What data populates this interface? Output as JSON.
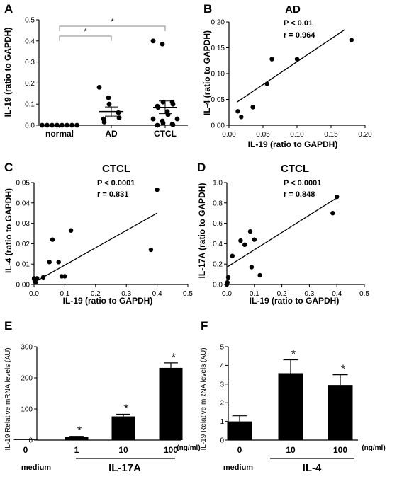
{
  "chart_data": [
    {
      "panel": "A",
      "type": "scatter",
      "ylabel": "IL-19 (ratio to GAPDH)",
      "yticks": [
        "0.0",
        "0.1",
        "0.2",
        "0.3",
        "0.4",
        "0.5"
      ],
      "ylim": [
        0,
        0.5
      ],
      "categories": [
        "normal",
        "AD",
        "CTCL"
      ],
      "groups": [
        {
          "name": "normal",
          "values": [
            0,
            0,
            0,
            0,
            0,
            0,
            0,
            0
          ],
          "mean": 0,
          "sem": 0
        },
        {
          "name": "AD",
          "values": [
            0.18,
            0.13,
            0.1,
            0.06,
            0.035,
            0.03,
            0.015
          ],
          "mean": 0.065,
          "sem": 0.022
        },
        {
          "name": "CTCL",
          "values": [
            0.4,
            0.385,
            0.11,
            0.11,
            0.1,
            0.09,
            0.085,
            0.065,
            0.05,
            0.03,
            0.03,
            0.02,
            0.01,
            0.005,
            0.002,
            0.0
          ],
          "mean": 0.085,
          "sem": 0.03
        }
      ],
      "brackets": [
        {
          "from": "normal",
          "to": "AD",
          "label": "*"
        },
        {
          "from": "normal",
          "to": "CTCL",
          "label": "*"
        }
      ]
    },
    {
      "panel": "B",
      "type": "scatter",
      "title": "AD",
      "p_text": "P < 0.01",
      "r_text": "r = 0.964",
      "xlabel": "IL-19 (ratio to GAPDH)",
      "ylabel": "IL-4 (ratio to GAPDH)",
      "xticks": [
        "0.00",
        "0.05",
        "0.10",
        "0.15",
        "0.20"
      ],
      "yticks": [
        "0.00",
        "0.05",
        "0.10",
        "0.15",
        "0.20"
      ],
      "xlim": [
        0,
        0.2
      ],
      "ylim": [
        0,
        0.2
      ],
      "points": [
        [
          0.013,
          0.027
        ],
        [
          0.018,
          0.016
        ],
        [
          0.035,
          0.035
        ],
        [
          0.056,
          0.08
        ],
        [
          0.063,
          0.128
        ],
        [
          0.1,
          0.128
        ],
        [
          0.18,
          0.165
        ]
      ],
      "fit": [
        [
          0.012,
          0.045
        ],
        [
          0.17,
          0.185
        ]
      ]
    },
    {
      "panel": "C",
      "type": "scatter",
      "title": "CTCL",
      "p_text": "P < 0.0001",
      "r_text": "r = 0.831",
      "xlabel": "IL-19 (ratio to GAPDH)",
      "ylabel": "IL-4 (ratio to GAPDH)",
      "xticks": [
        "0.0",
        "0.1",
        "0.2",
        "0.3",
        "0.4",
        "0.5"
      ],
      "yticks": [
        "0.00",
        "0.01",
        "0.02",
        "0.03",
        "0.04",
        "0.05"
      ],
      "xlim": [
        0,
        0.5
      ],
      "ylim": [
        0,
        0.05
      ],
      "points": [
        [
          0.0,
          0.003
        ],
        [
          0.002,
          0.002
        ],
        [
          0.005,
          0.001
        ],
        [
          0.01,
          0.003
        ],
        [
          0.03,
          0.0035
        ],
        [
          0.05,
          0.011
        ],
        [
          0.06,
          0.022
        ],
        [
          0.08,
          0.011
        ],
        [
          0.09,
          0.004
        ],
        [
          0.1,
          0.004
        ],
        [
          0.12,
          0.0265
        ],
        [
          0.38,
          0.017
        ],
        [
          0.4,
          0.0465
        ]
      ],
      "fit": [
        [
          0.0,
          0.001
        ],
        [
          0.4,
          0.035
        ]
      ]
    },
    {
      "panel": "D",
      "type": "scatter",
      "title": "CTCL",
      "p_text": "P < 0.0001",
      "r_text": "r = 0.848",
      "xlabel": "IL-19 (ratio to GAPDH)",
      "ylabel": "IL-17A (ratio to GAPDH)",
      "xticks": [
        "0.0",
        "0.1",
        "0.2",
        "0.3",
        "0.4",
        "0.5"
      ],
      "yticks": [
        "0.0",
        "0.2",
        "0.4",
        "0.6",
        "0.8",
        "1.0"
      ],
      "xlim": [
        0,
        0.5
      ],
      "ylim": [
        0,
        1.0
      ],
      "points": [
        [
          0.0,
          0.0
        ],
        [
          0.002,
          0.02
        ],
        [
          0.005,
          0.07
        ],
        [
          0.02,
          0.28
        ],
        [
          0.05,
          0.43
        ],
        [
          0.065,
          0.39
        ],
        [
          0.085,
          0.52
        ],
        [
          0.09,
          0.17
        ],
        [
          0.1,
          0.44
        ],
        [
          0.12,
          0.09
        ],
        [
          0.385,
          0.7
        ],
        [
          0.4,
          0.86
        ]
      ],
      "fit": [
        [
          0.0,
          0.17
        ],
        [
          0.4,
          0.85
        ]
      ]
    },
    {
      "panel": "E",
      "type": "bar",
      "ylabel": "IL-19 Relative mRNA levels (AU)",
      "yticks": [
        "0",
        "100",
        "200",
        "300"
      ],
      "ylim": [
        0,
        300
      ],
      "categories": [
        "0",
        "1",
        "10",
        "100"
      ],
      "values": [
        2,
        10,
        76,
        232
      ],
      "errors": [
        0,
        2,
        7,
        16
      ],
      "stars": [
        "",
        "*",
        "*",
        "*"
      ],
      "unit": "(ng/ml)",
      "medium_label": "medium",
      "treatment_label": "IL-17A"
    },
    {
      "panel": "F",
      "type": "bar",
      "ylabel": "IL-19 Relative mRNA levels (AU)",
      "yticks": [
        "0",
        "1",
        "2",
        "3",
        "4",
        "5"
      ],
      "ylim": [
        0,
        5
      ],
      "categories": [
        "0",
        "10",
        "100"
      ],
      "values": [
        1.0,
        3.58,
        2.95
      ],
      "errors": [
        0.3,
        0.72,
        0.55
      ],
      "stars": [
        "",
        "*",
        "*"
      ],
      "unit": "(ng/ml)",
      "medium_label": "medium",
      "treatment_label": "IL-4"
    }
  ]
}
